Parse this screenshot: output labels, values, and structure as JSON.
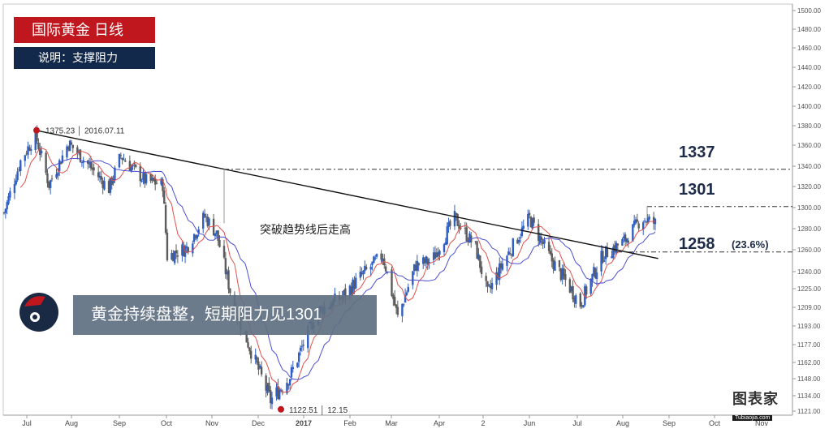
{
  "header": {
    "title": "国际黄金  日线",
    "subtitle": "说明：支撑阻力"
  },
  "banner": {
    "text": "黄金持续盘整，短期阻力见1301"
  },
  "brand": {
    "name": "图表家",
    "sub": "Tubiaojia.com"
  },
  "colors": {
    "up_candle": "#2f5ec4",
    "down_candle": "#5c5c5c",
    "ma_fast": "#e0504b",
    "ma_slow": "#4a4fd1",
    "trendline": "#111111",
    "marker": "#c0161d",
    "tag_red": "#c0161d",
    "tag_navy": "#13294b"
  },
  "chart_data": {
    "type": "candlestick",
    "title": "国际黄金  日线",
    "ylim": [
      1121,
      1500
    ],
    "y_axis_position": "right",
    "x_tick_labels": [
      "Jul",
      "Aug",
      "Sep",
      "Oct",
      "Nov",
      "Dec",
      "2017",
      "Feb",
      "Mar",
      "Apr",
      "2",
      "Jun",
      "Jul",
      "Aug",
      "Sep",
      "Oct",
      "Nov"
    ],
    "y_tick_labels": [
      "1500.00",
      "1480.00",
      "1460.00",
      "1440.00",
      "1420.00",
      "1400.00",
      "1380.00",
      "1360.00",
      "1340.00",
      "1320.00",
      "1300.00",
      "1280.00",
      "1260.00",
      "1240.00",
      "1225.00",
      "1209.00",
      "1193.00",
      "1177.00",
      "1162.00",
      "1148.00",
      "1134.00",
      "1121.00"
    ],
    "price_path": [
      [
        "2016-06-20",
        1295
      ],
      [
        "2016-07-01",
        1345
      ],
      [
        "2016-07-11",
        1370
      ],
      [
        "2016-07-20",
        1322
      ],
      [
        "2016-08-02",
        1362
      ],
      [
        "2016-08-15",
        1342
      ],
      [
        "2016-08-29",
        1318
      ],
      [
        "2016-09-06",
        1350
      ],
      [
        "2016-09-22",
        1326
      ],
      [
        "2016-10-04",
        1322
      ],
      [
        "2016-10-07",
        1254
      ],
      [
        "2016-10-20",
        1262
      ],
      [
        "2016-11-01",
        1292
      ],
      [
        "2016-11-09",
        1275
      ],
      [
        "2016-11-20",
        1212
      ],
      [
        "2016-12-01",
        1175
      ],
      [
        "2016-12-15",
        1130
      ],
      [
        "2016-12-28",
        1150
      ],
      [
        "2017-01-15",
        1205
      ],
      [
        "2017-02-01",
        1218
      ],
      [
        "2017-02-15",
        1238
      ],
      [
        "2017-02-28",
        1255
      ],
      [
        "2017-03-10",
        1200
      ],
      [
        "2017-03-22",
        1246
      ],
      [
        "2017-04-02",
        1250
      ],
      [
        "2017-04-17",
        1290
      ],
      [
        "2017-05-01",
        1262
      ],
      [
        "2017-05-09",
        1220
      ],
      [
        "2017-05-20",
        1250
      ],
      [
        "2017-06-06",
        1290
      ],
      [
        "2017-06-20",
        1252
      ],
      [
        "2017-07-10",
        1212
      ],
      [
        "2017-07-25",
        1255
      ],
      [
        "2017-08-08",
        1268
      ],
      [
        "2017-08-20",
        1290
      ],
      [
        "2017-08-29",
        1285
      ]
    ],
    "moving_averages": [
      {
        "color": "#e0504b"
      },
      {
        "color": "#4a4fd1"
      }
    ],
    "annotations": {
      "high_label": "1375.23 │ 2016.07.11",
      "high": {
        "x": "2016-07-11",
        "y": 1375.23
      },
      "low_label": "1122.51 │ 12.15",
      "low": {
        "x": "2016-12-15",
        "y": 1122.51
      },
      "trend_text": "突破趋势线后走高",
      "trendline": [
        [
          "2016-07-11",
          1375.23
        ],
        [
          "2017-08-31",
          1252
        ]
      ],
      "levels": [
        {
          "label": "1337",
          "value": 1337
        },
        {
          "label": "1301",
          "value": 1301
        },
        {
          "label": "1258",
          "value": 1258,
          "note": "(23.6%)"
        }
      ]
    }
  }
}
